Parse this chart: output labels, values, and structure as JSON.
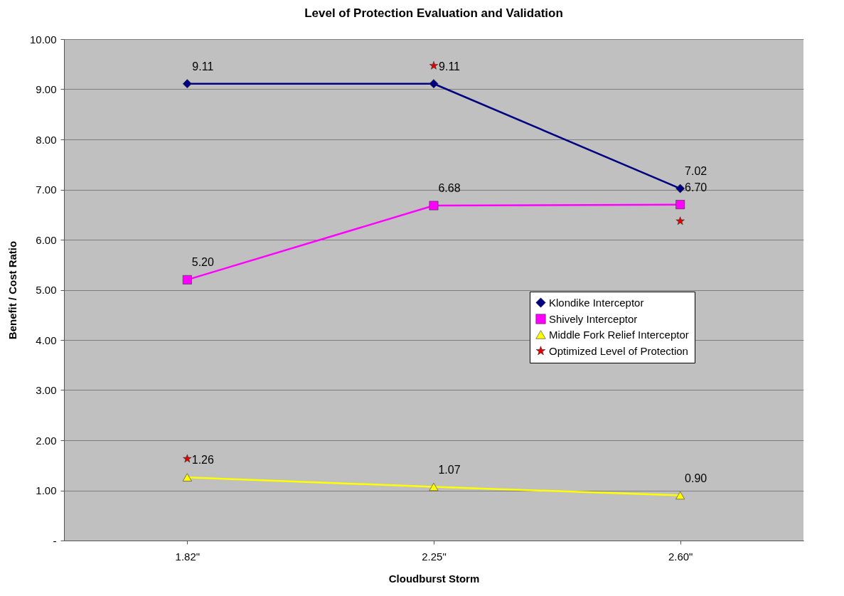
{
  "chart_data": {
    "type": "line",
    "title": "Level of Protection Evaluation and Validation",
    "xlabel": "Cloudburst Storm",
    "ylabel": "Benefit / Cost Ratio",
    "categories": [
      "1.82\"",
      "2.25\"",
      "2.60\""
    ],
    "series": [
      {
        "name": "Klondike Interceptor",
        "color": "#000080",
        "marker": "diamond",
        "values": [
          9.11,
          9.11,
          7.02
        ],
        "value_labels": [
          "9.11",
          "9.11",
          "7.02"
        ]
      },
      {
        "name": "Shively Interceptor",
        "color": "#ff00ff",
        "marker": "square",
        "values": [
          5.2,
          6.68,
          6.7
        ],
        "value_labels": [
          "5.20",
          "6.68",
          "6.70"
        ]
      },
      {
        "name": "Middle Fork Relief Interceptor",
        "color": "#ffff00",
        "marker": "triangle",
        "values": [
          1.26,
          1.07,
          0.9
        ],
        "value_labels": [
          "1.26",
          "1.07",
          "0.90"
        ]
      },
      {
        "name": "Optimized Level of Protection",
        "type": "scatter",
        "color": "#e00000",
        "marker": "star",
        "values": [
          1.63,
          9.47,
          6.37
        ]
      }
    ],
    "ylim": [
      0,
      10
    ],
    "yticks": [
      {
        "value": 0,
        "label": "-"
      },
      {
        "value": 1,
        "label": "1.00"
      },
      {
        "value": 2,
        "label": "2.00"
      },
      {
        "value": 3,
        "label": "3.00"
      },
      {
        "value": 4,
        "label": "4.00"
      },
      {
        "value": 5,
        "label": "5.00"
      },
      {
        "value": 6,
        "label": "6.00"
      },
      {
        "value": 7,
        "label": "7.00"
      },
      {
        "value": 8,
        "label": "8.00"
      },
      {
        "value": 9,
        "label": "9.00"
      },
      {
        "value": 10,
        "label": "10.00"
      }
    ],
    "grid": "y",
    "legend": "right"
  }
}
